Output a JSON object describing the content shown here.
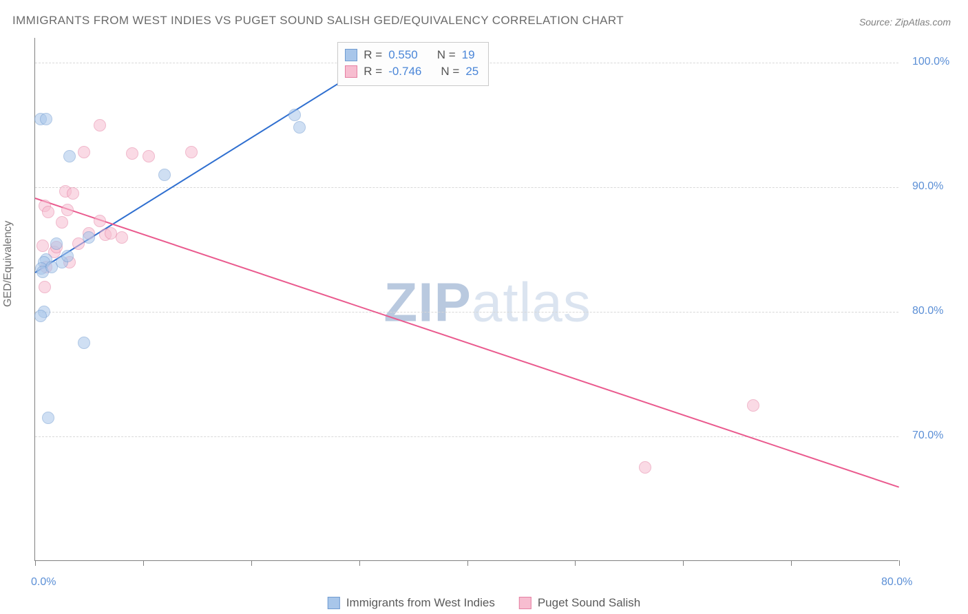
{
  "title": "IMMIGRANTS FROM WEST INDIES VS PUGET SOUND SALISH GED/EQUIVALENCY CORRELATION CHART",
  "source": "Source: ZipAtlas.com",
  "yaxis_title": "GED/Equivalency",
  "watermark": {
    "part1": "ZIP",
    "part2": "atlas"
  },
  "chart": {
    "type": "scatter",
    "background_color": "#ffffff",
    "grid_color": "#d8d8d8",
    "axis_color": "#7f7f7f",
    "tick_label_color": "#5b8fd6",
    "axis_title_color": "#707070",
    "label_fontsize": 16,
    "xlim": [
      0,
      80
    ],
    "ylim": [
      60,
      102
    ],
    "xticks": [
      0,
      10,
      20,
      30,
      40,
      50,
      60,
      70,
      80
    ],
    "xtick_labels": {
      "0": "0.0%",
      "80": "80.0%"
    },
    "yticks": [
      70,
      80,
      90,
      100
    ],
    "ytick_labels": {
      "70": "70.0%",
      "80": "80.0%",
      "90": "90.0%",
      "100": "100.0%"
    },
    "marker_radius": 9,
    "marker_opacity": 0.55,
    "line_width": 2
  },
  "series": {
    "a": {
      "label": "Immigrants from West Indies",
      "fill": "#a8c6ea",
      "stroke": "#6f9bd1",
      "line_color": "#2f6fd0",
      "R": "0.550",
      "N": "19",
      "points": [
        [
          0.5,
          95.5
        ],
        [
          1.0,
          95.5
        ],
        [
          3.2,
          92.5
        ],
        [
          12.0,
          91.0
        ],
        [
          2.0,
          85.5
        ],
        [
          1.0,
          84.2
        ],
        [
          0.8,
          84.0
        ],
        [
          2.5,
          84.0
        ],
        [
          3.0,
          84.5
        ],
        [
          0.6,
          83.5
        ],
        [
          0.7,
          83.2
        ],
        [
          1.5,
          83.6
        ],
        [
          0.8,
          80.0
        ],
        [
          0.5,
          79.7
        ],
        [
          4.5,
          77.5
        ],
        [
          1.2,
          71.5
        ],
        [
          24.0,
          95.8
        ],
        [
          24.5,
          94.8
        ],
        [
          5.0,
          86.0
        ]
      ],
      "trend": {
        "x1": 0,
        "y1": 83.2,
        "x2": 32,
        "y2": 100.5
      }
    },
    "b": {
      "label": "Puget Sound Salish",
      "fill": "#f7bdd0",
      "stroke": "#e57fa2",
      "line_color": "#ea5a8e",
      "R": "-0.746",
      "N": "25",
      "points": [
        [
          6.0,
          95.0
        ],
        [
          4.5,
          92.8
        ],
        [
          9.0,
          92.7
        ],
        [
          10.5,
          92.5
        ],
        [
          14.5,
          92.8
        ],
        [
          2.8,
          89.7
        ],
        [
          3.5,
          89.5
        ],
        [
          0.9,
          88.5
        ],
        [
          1.2,
          88.0
        ],
        [
          2.5,
          87.2
        ],
        [
          6.0,
          87.3
        ],
        [
          5.0,
          86.3
        ],
        [
          6.5,
          86.2
        ],
        [
          7.0,
          86.3
        ],
        [
          0.7,
          85.3
        ],
        [
          1.8,
          84.8
        ],
        [
          1.0,
          83.6
        ],
        [
          3.2,
          84.0
        ],
        [
          8.0,
          86.0
        ],
        [
          2.0,
          85.2
        ],
        [
          0.9,
          82.0
        ],
        [
          4.0,
          85.5
        ],
        [
          66.5,
          72.5
        ],
        [
          56.5,
          67.5
        ],
        [
          3.0,
          88.2
        ]
      ],
      "trend": {
        "x1": 0,
        "y1": 89.2,
        "x2": 80,
        "y2": 66.0
      }
    }
  },
  "corr_box": {
    "R_label": "R  =",
    "N_label": "N  ="
  }
}
